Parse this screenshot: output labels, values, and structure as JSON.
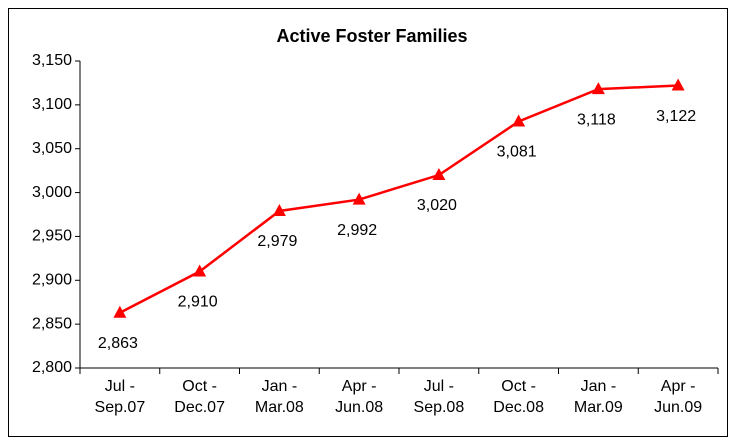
{
  "chart_data": {
    "type": "line",
    "title": "Active Foster Families",
    "categories": [
      "Jul -\nSep.07",
      "Oct -\nDec.07",
      "Jan -\nMar.08",
      "Apr -\nJun.08",
      "Jul -\nSep.08",
      "Oct -\nDec.08",
      "Jan -\nMar.09",
      "Apr -\nJun.09"
    ],
    "series": [
      {
        "name": "Active Foster Families",
        "color": "#ff0000",
        "values": [
          2863,
          2910,
          2979,
          2992,
          3020,
          3081,
          3118,
          3122
        ],
        "value_labels": [
          "2,863",
          "2,910",
          "2,979",
          "2,992",
          "3,020",
          "3,081",
          "3,118",
          "3,122"
        ]
      }
    ],
    "ylim": [
      2800,
      3150
    ],
    "yticks": [
      {
        "value": 2800,
        "label": "2,800"
      },
      {
        "value": 2850,
        "label": "2,850"
      },
      {
        "value": 2900,
        "label": "2,900"
      },
      {
        "value": 2950,
        "label": "2,950"
      },
      {
        "value": 3000,
        "label": "3,000"
      },
      {
        "value": 3050,
        "label": "3,050"
      },
      {
        "value": 3100,
        "label": "3,100"
      },
      {
        "value": 3150,
        "label": "3,150"
      }
    ]
  }
}
